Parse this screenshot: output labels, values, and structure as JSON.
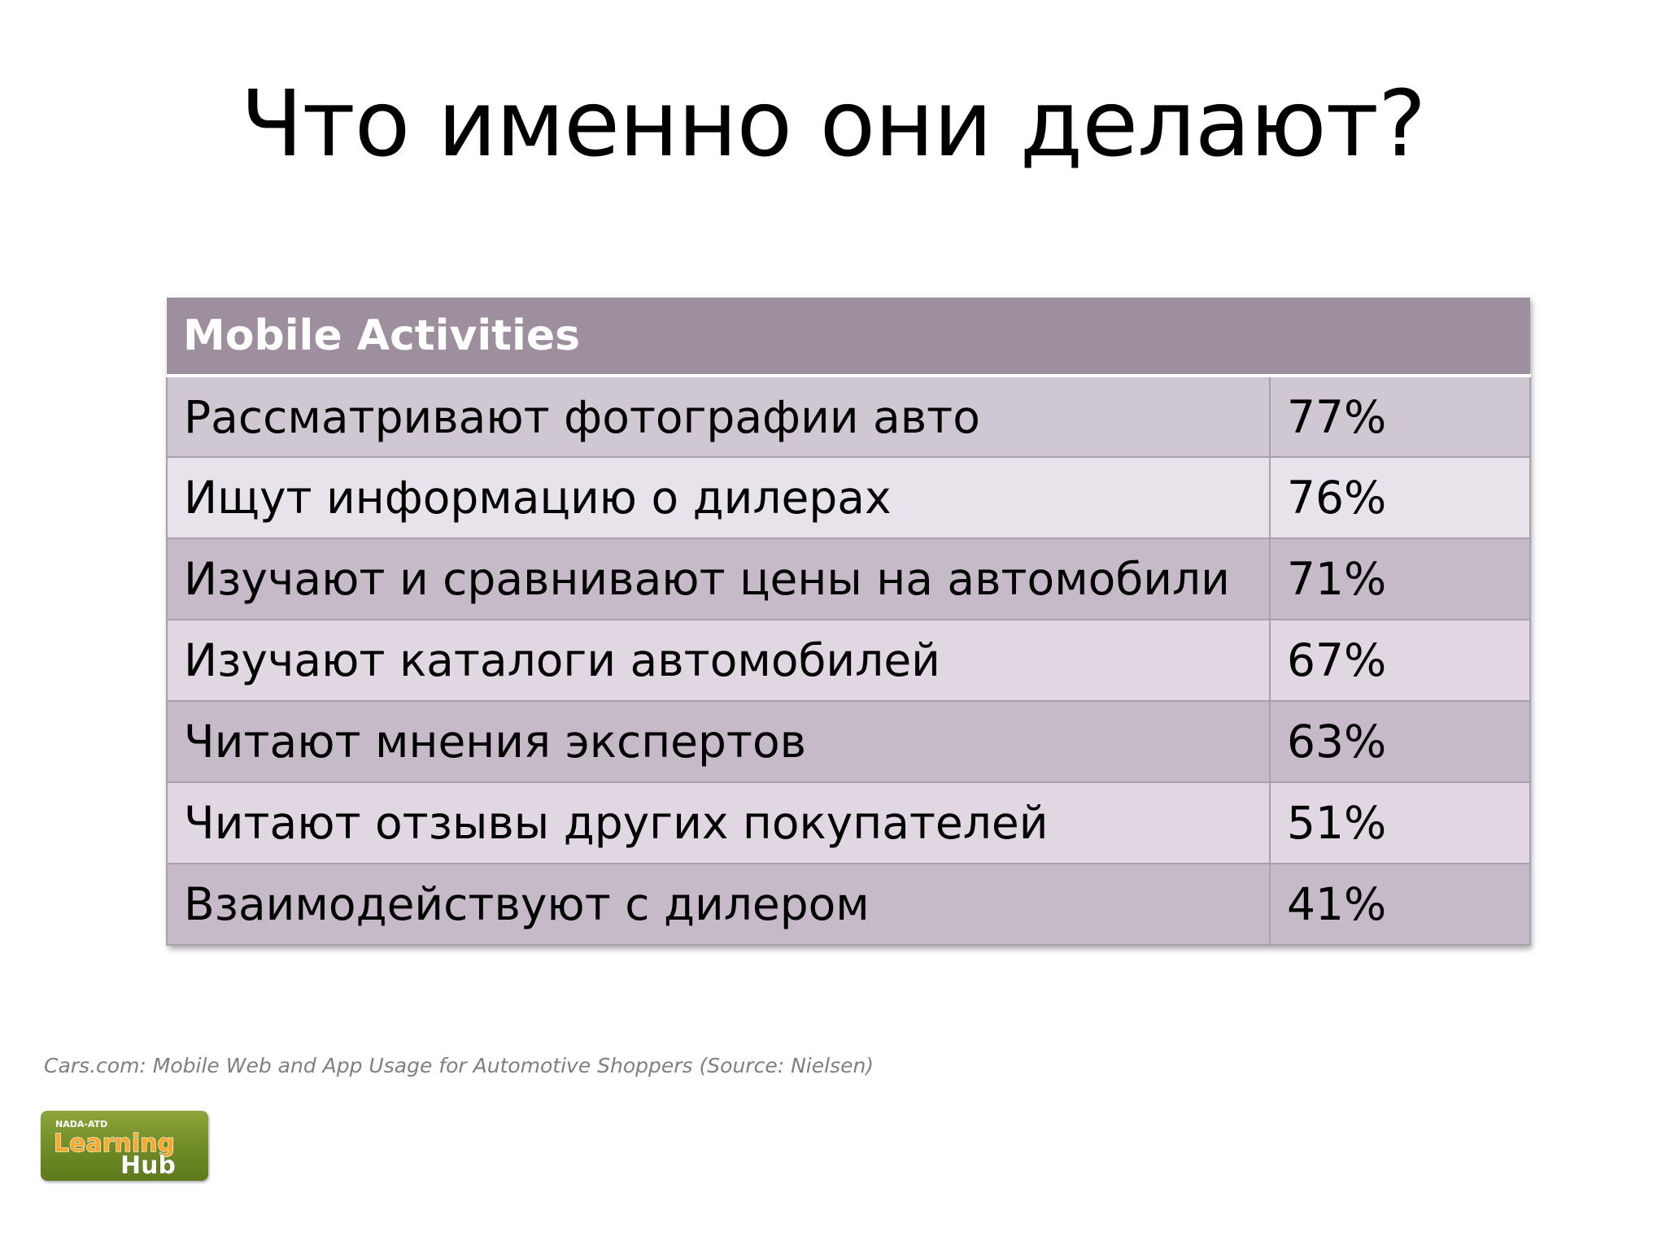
{
  "slide": {
    "title": "Что именно они делают?"
  },
  "table": {
    "header": "Mobile Activities",
    "rows": [
      {
        "activity": "Рассматривают фотографии авто",
        "percent": "77%"
      },
      {
        "activity": "Ищут информацию о дилерах",
        "percent": "76%"
      },
      {
        "activity": "Изучают и сравнивают цены на автомобили",
        "percent": "71%"
      },
      {
        "activity": "Изучают каталоги автомобилей",
        "percent": "67%"
      },
      {
        "activity": "Читают мнения экспертов",
        "percent": "63%"
      },
      {
        "activity": "Читают отзывы других покупателей",
        "percent": "51%"
      },
      {
        "activity": "Взаимодействуют с дилером",
        "percent": "41%"
      }
    ]
  },
  "footer": {
    "source": "Cars.com: Mobile Web and App Usage for Automotive Shoppers (Source: Nielsen)"
  },
  "logo": {
    "line1": "NADA-ATD",
    "line2": "Learning",
    "line3": "Hub"
  },
  "colors": {
    "header_bg": "#9e8f9f",
    "row_dark": "#cfc7d2",
    "row_light": "#e8e2eb",
    "logo_green": "#7a9530",
    "logo_orange": "#f2a32c"
  }
}
